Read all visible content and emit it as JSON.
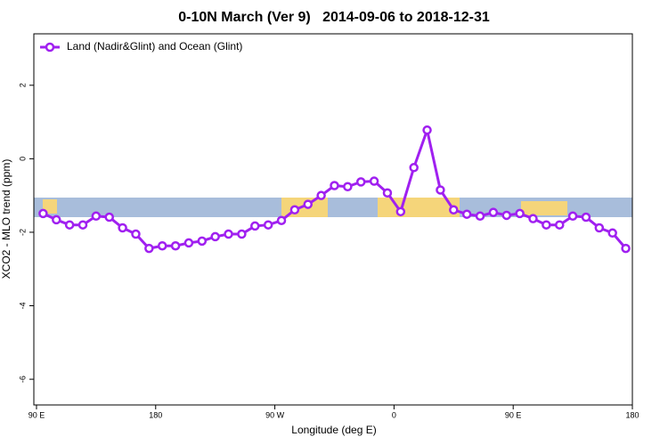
{
  "chart_data": {
    "type": "line",
    "title": "0-10N March (Ver 9)   2014-09-06 to 2018-12-31",
    "x_label": "Longitude (deg E)",
    "y_label": "XCO2 - MLO trend (ppm)",
    "x": [
      95,
      105,
      115,
      125,
      135,
      145,
      155,
      165,
      175,
      185,
      195,
      205,
      215,
      225,
      235,
      245,
      255,
      265,
      275,
      285,
      295,
      305,
      315,
      325,
      335,
      345,
      355,
      365,
      375,
      385,
      395,
      405,
      415,
      425,
      435,
      445,
      455,
      465,
      475,
      485,
      495,
      505,
      515,
      525,
      535
    ],
    "series": [
      {
        "name": "Land (Nadir&Glint) and Ocean (Glint)",
        "color": "#a020f0",
        "values": [
          -1.49,
          -1.66,
          -1.8,
          -1.8,
          -1.56,
          -1.59,
          -1.88,
          -2.05,
          -2.44,
          -2.37,
          -2.37,
          -2.29,
          -2.24,
          -2.12,
          -2.05,
          -2.05,
          -1.83,
          -1.8,
          -1.68,
          -1.39,
          -1.24,
          -1.0,
          -0.73,
          -0.76,
          -0.63,
          -0.61,
          -0.93,
          -1.44,
          -0.24,
          0.78,
          -0.85,
          -1.39,
          -1.51,
          -1.56,
          -1.46,
          -1.54,
          -1.49,
          -1.63,
          -1.8,
          -1.8,
          -1.56,
          -1.59,
          -1.88,
          -2.02,
          -2.44
        ]
      }
    ],
    "xlim": [
      88,
      540
    ],
    "ylim": [
      -6.7,
      3.4
    ],
    "xticks": [
      {
        "value": 90,
        "label": "90 E"
      },
      {
        "value": 180,
        "label": "180"
      },
      {
        "value": 270,
        "label": "90 W"
      },
      {
        "value": 360,
        "label": "0"
      },
      {
        "value": 450,
        "label": "90 E"
      },
      {
        "value": 540,
        "label": "180"
      }
    ],
    "yticks": [
      -6,
      -4,
      -2,
      0,
      2
    ],
    "legend": "top-left"
  }
}
